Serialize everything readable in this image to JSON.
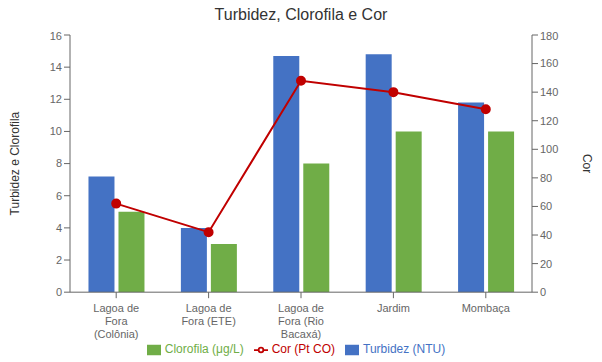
{
  "chart_data": {
    "type": "bar",
    "title": "Turbidez, Clorofila e Cor",
    "categories": [
      "Lagoa de\nFora\n(Colônia)",
      "Lagoa de\nFora (ETE)",
      "Lagoa de\nFora (Rio\nBacaxá)",
      "Jardim",
      "Mombaça"
    ],
    "series": [
      {
        "name": "Turbidez (NTU)",
        "type": "bar",
        "color": "#4472C4",
        "values": [
          7.2,
          4.0,
          14.7,
          14.8,
          11.8
        ]
      },
      {
        "name": "Clorofila (μg/L)",
        "type": "bar",
        "color": "#70AD47",
        "values": [
          5.0,
          3.0,
          8.0,
          10.0,
          10.0
        ]
      },
      {
        "name": "Cor (Pt CO)",
        "type": "line",
        "axis": "y2",
        "marker": "circle",
        "color": "#C00000",
        "values": [
          62,
          42,
          148,
          140,
          128
        ]
      }
    ],
    "ylabel": "Turbidez e Clorofila",
    "y2label": "Cor",
    "ylim": [
      0,
      16
    ],
    "yticks": [
      0,
      2,
      4,
      6,
      8,
      10,
      12,
      14,
      16
    ],
    "y2lim": [
      0,
      180
    ],
    "y2ticks": [
      0,
      20,
      40,
      60,
      80,
      100,
      120,
      140,
      160,
      180
    ],
    "legend": "bottom",
    "grid": false
  }
}
